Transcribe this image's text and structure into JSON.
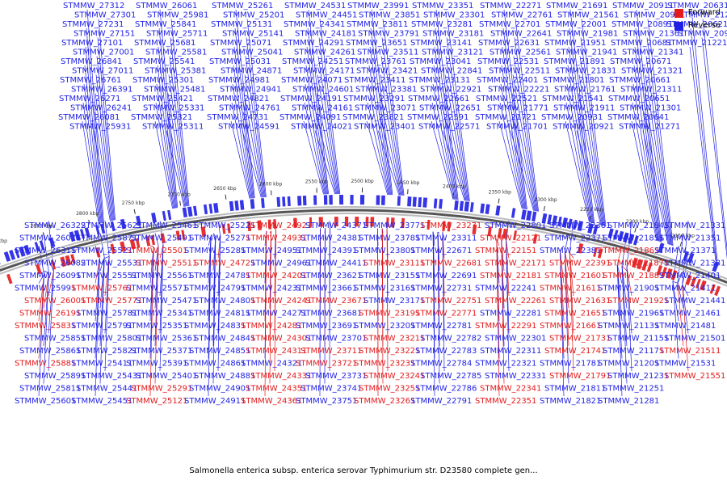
{
  "legend": {
    "forward_label": "Forward",
    "reverse_label": "Reverse",
    "forward_color": "#e31a1c",
    "reverse_color": "#1f1fe6"
  },
  "caption": "Salmonella enterica subsp. enterica serovar Typhimurium str. D23580 complete gen...",
  "scale_labels": [
    "2150 kbp",
    "2200 kbp",
    "2250 kbp",
    "2300 kbp",
    "2350 kbp",
    "2400 kbp",
    "2450 kbp",
    "2500 kbp",
    "2550 kbp",
    "2600 kbp",
    "2650 kbp",
    "2700 kbp",
    "2750 kbp",
    "2800 kbp",
    "2850 kbp",
    "2900 kbp"
  ],
  "reverse_genes_outer": [
    "STMMW_27312",
    "STMMW_27301",
    "STMMW_27231",
    "STMMW_27151",
    "STMMW_27101",
    "STMMW_27001",
    "STMMW_26841",
    "STMMW_27011",
    "STMMW_26761",
    "STMMW_26391",
    "STMMW_26271",
    "STMMW_26241",
    "STMMW_26081",
    "STMMW_25931",
    "STMMW_26061",
    "STMMW_25981",
    "STMMW_25841",
    "STMMW_25711",
    "STMMW_25681",
    "STMMW_25581",
    "STMMW_25541",
    "STMMW_25381",
    "STMMW_25301",
    "STMMW_25481",
    "STMMW_25421",
    "STMMW_25331",
    "STMMW_25321",
    "STMMW_25311",
    "STMMW_25261",
    "STMMW_25201",
    "STMMW_25131",
    "STMMW_25141",
    "STMMW_25071",
    "STMMW_25041",
    "STMMW_25031",
    "STMMW_24871",
    "STMMW_24981",
    "STMMW_24941",
    "STMMW_24821",
    "STMMW_24761",
    "STMMW_24731",
    "STMMW_24591",
    "STMMW_24531",
    "STMMW_24451",
    "STMMW_24341",
    "STMMW_24181",
    "STMMW_24291",
    "STMMW_24261",
    "STMMW_24251",
    "STMMW_24171",
    "STMMW_24071",
    "STMMW_24601",
    "STMMW_24191",
    "STMMW_24161",
    "STMMW_24091",
    "STMMW_24021",
    "STMMW_23991",
    "STMMW_23851",
    "STMMW_23811",
    "STMMW_23791",
    "STMMW_23651",
    "STMMW_23511",
    "STMMW_23761",
    "STMMW_23421",
    "STMMW_23411",
    "STMMW_23381",
    "STMMW_23291",
    "STMMW_23071",
    "STMMW_23821",
    "STMMW_23401",
    "STMMW_23351",
    "STMMW_23301",
    "STMMW_23281",
    "STMMW_23181",
    "STMMW_23141",
    "STMMW_23121",
    "STMMW_23041",
    "STMMW_22841",
    "STMMW_23131",
    "STMMW_22921",
    "STMMW_22661",
    "STMMW_22651",
    "STMMW_22591",
    "STMMW_22571",
    "STMMW_22271",
    "STMMW_22761",
    "STMMW_22701",
    "STMMW_22641",
    "STMMW_22631",
    "STMMW_22561",
    "STMMW_22531",
    "STMMW_22511",
    "STMMW_22401",
    "STMMW_22221",
    "STMMW_22521",
    "STMMW_21771",
    "STMMW_21721",
    "STMMW_21701",
    "STMMW_21691",
    "STMMW_21561",
    "STMMW_22001",
    "STMMW_21981",
    "STMMW_21951",
    "STMMW_21941",
    "STMMW_21891",
    "STMMW_21831",
    "STMMW_21801",
    "STMMW_21761",
    "STMMW_21541",
    "STMMW_21911",
    "STMMW_20931",
    "STMMW_20921",
    "STMMW_20911",
    "STMMW_20901",
    "STMMW_20891",
    "STMMW_21361",
    "STMMW_20681",
    "STMMW_21341",
    "STMMW_20671",
    "STMMW_21321",
    "STMMW_20661",
    "STMMW_21311",
    "STMMW_20651",
    "STMMW_21301",
    "STMMW_20641",
    "STMMW_21271",
    "STMMW_20631",
    "STMMW_21291",
    "STMMW_20621",
    "STMMW_20951",
    "STMMW_21221"
  ],
  "genes_inner": [
    {
      "label": "STMMW_26322",
      "strand": "reverse"
    },
    {
      "label": "STMMW_26071",
      "strand": "reverse"
    },
    {
      "label": "STMMW_26311",
      "strand": "reverse"
    },
    {
      "label": "STMMW_26082",
      "strand": "reverse"
    },
    {
      "label": "STMMW_26091",
      "strand": "reverse"
    },
    {
      "label": "STMMW_25991",
      "strand": "reverse"
    },
    {
      "label": "STMMW_26001",
      "strand": "forward"
    },
    {
      "label": "STMMW_26191",
      "strand": "forward"
    },
    {
      "label": "STMMW_25831",
      "strand": "forward"
    },
    {
      "label": "STMMW_25851",
      "strand": "reverse"
    },
    {
      "label": "STMMW_25861",
      "strand": "reverse"
    },
    {
      "label": "STMMW_25881",
      "strand": "forward"
    },
    {
      "label": "STMMW_25891",
      "strand": "reverse"
    },
    {
      "label": "STMMW_25811",
      "strand": "reverse"
    },
    {
      "label": "STMMW_25601",
      "strand": "reverse"
    },
    {
      "label": "STMMW_25621",
      "strand": "reverse"
    },
    {
      "label": "STMMW_25871",
      "strand": "reverse"
    },
    {
      "label": "STMMW_25521",
      "strand": "reverse"
    },
    {
      "label": "STMMW_25531",
      "strand": "reverse"
    },
    {
      "label": "STMMW_25551",
      "strand": "reverse"
    },
    {
      "label": "STMMW_25761",
      "strand": "forward"
    },
    {
      "label": "STMMW_25771",
      "strand": "forward"
    },
    {
      "label": "STMMW_25781",
      "strand": "reverse"
    },
    {
      "label": "STMMW_25791",
      "strand": "reverse"
    },
    {
      "label": "STMMW_25801",
      "strand": "reverse"
    },
    {
      "label": "STMMW_25821",
      "strand": "reverse"
    },
    {
      "label": "STMMW_25411",
      "strand": "reverse"
    },
    {
      "label": "STMMW_25431",
      "strand": "reverse"
    },
    {
      "label": "STMMW_25441",
      "strand": "reverse"
    },
    {
      "label": "STMMW_25451",
      "strand": "reverse"
    },
    {
      "label": "STMMW_25461",
      "strand": "reverse"
    },
    {
      "label": "STMMW_25491",
      "strand": "reverse"
    },
    {
      "label": "STMMW_25501",
      "strand": "forward"
    },
    {
      "label": "STMMW_25511",
      "strand": "forward"
    },
    {
      "label": "STMMW_25561",
      "strand": "reverse"
    },
    {
      "label": "STMMW_25571",
      "strand": "reverse"
    },
    {
      "label": "STMMW_25471",
      "strand": "reverse"
    },
    {
      "label": "STMMW_25341",
      "strand": "reverse"
    },
    {
      "label": "STMMW_25351",
      "strand": "reverse"
    },
    {
      "label": "STMMW_25361",
      "strand": "reverse"
    },
    {
      "label": "STMMW_25371",
      "strand": "reverse"
    },
    {
      "label": "STMMW_25391",
      "strand": "reverse"
    },
    {
      "label": "STMMW_25401",
      "strand": "reverse"
    },
    {
      "label": "STMMW_25291",
      "strand": "forward"
    },
    {
      "label": "STMMW_25121",
      "strand": "forward"
    },
    {
      "label": "STMMW_25221",
      "strand": "reverse"
    },
    {
      "label": "STMMW_25271",
      "strand": "reverse"
    },
    {
      "label": "STMMW_25281",
      "strand": "reverse"
    },
    {
      "label": "STMMW_24721",
      "strand": "forward"
    },
    {
      "label": "STMMW_24781",
      "strand": "reverse"
    },
    {
      "label": "STMMW_24791",
      "strand": "reverse"
    },
    {
      "label": "STMMW_24801",
      "strand": "reverse"
    },
    {
      "label": "STMMW_24811",
      "strand": "reverse"
    },
    {
      "label": "STMMW_24831",
      "strand": "reverse"
    },
    {
      "label": "STMMW_24841",
      "strand": "reverse"
    },
    {
      "label": "STMMW_24851",
      "strand": "reverse"
    },
    {
      "label": "STMMW_24861",
      "strand": "reverse"
    },
    {
      "label": "STMMW_24881",
      "strand": "reverse"
    },
    {
      "label": "STMMW_24901",
      "strand": "reverse"
    },
    {
      "label": "STMMW_24911",
      "strand": "reverse"
    },
    {
      "label": "STMMW_24921",
      "strand": "forward"
    },
    {
      "label": "STMMW_24931",
      "strand": "forward"
    },
    {
      "label": "STMMW_24951",
      "strand": "reverse"
    },
    {
      "label": "STMMW_24961",
      "strand": "reverse"
    },
    {
      "label": "STMMW_24201",
      "strand": "forward"
    },
    {
      "label": "STMMW_24231",
      "strand": "reverse"
    },
    {
      "label": "STMMW_24241",
      "strand": "forward"
    },
    {
      "label": "STMMW_24271",
      "strand": "reverse"
    },
    {
      "label": "STMMW_24281",
      "strand": "forward"
    },
    {
      "label": "STMMW_24301",
      "strand": "forward"
    },
    {
      "label": "STMMW_24311",
      "strand": "forward"
    },
    {
      "label": "STMMW_24321",
      "strand": "reverse"
    },
    {
      "label": "STMMW_24331",
      "strand": "forward"
    },
    {
      "label": "STMMW_24351",
      "strand": "forward"
    },
    {
      "label": "STMMW_24361",
      "strand": "forward"
    },
    {
      "label": "STMMW_24371",
      "strand": "reverse"
    },
    {
      "label": "STMMW_24381",
      "strand": "reverse"
    },
    {
      "label": "STMMW_24391",
      "strand": "reverse"
    },
    {
      "label": "STMMW_24411",
      "strand": "reverse"
    },
    {
      "label": "STMMW_23621",
      "strand": "reverse"
    },
    {
      "label": "STMMW_23661",
      "strand": "reverse"
    },
    {
      "label": "STMMW_23671",
      "strand": "forward"
    },
    {
      "label": "STMMW_23681",
      "strand": "reverse"
    },
    {
      "label": "STMMW_23691",
      "strand": "reverse"
    },
    {
      "label": "STMMW_23701",
      "strand": "reverse"
    },
    {
      "label": "STMMW_23711",
      "strand": "forward"
    },
    {
      "label": "STMMW_23721",
      "strand": "forward"
    },
    {
      "label": "STMMW_23731",
      "strand": "reverse"
    },
    {
      "label": "STMMW_23741",
      "strand": "reverse"
    },
    {
      "label": "STMMW_23751",
      "strand": "reverse"
    },
    {
      "label": "STMMW_23771",
      "strand": "reverse"
    },
    {
      "label": "STMMW_23781",
      "strand": "reverse"
    },
    {
      "label": "STMMW_23801",
      "strand": "reverse"
    },
    {
      "label": "STMMW_23111",
      "strand": "forward"
    },
    {
      "label": "STMMW_23151",
      "strand": "reverse"
    },
    {
      "label": "STMMW_23161",
      "strand": "reverse"
    },
    {
      "label": "STMMW_23171",
      "strand": "reverse"
    },
    {
      "label": "STMMW_23191",
      "strand": "forward"
    },
    {
      "label": "STMMW_23201",
      "strand": "reverse"
    },
    {
      "label": "STMMW_23211",
      "strand": "forward"
    },
    {
      "label": "STMMW_23221",
      "strand": "forward"
    },
    {
      "label": "STMMW_23231",
      "strand": "forward"
    },
    {
      "label": "STMMW_23241",
      "strand": "forward"
    },
    {
      "label": "STMMW_23251",
      "strand": "forward"
    },
    {
      "label": "STMMW_23261",
      "strand": "forward"
    },
    {
      "label": "STMMW_23271",
      "strand": "forward"
    },
    {
      "label": "STMMW_23311",
      "strand": "reverse"
    },
    {
      "label": "STMMW_22671",
      "strand": "reverse"
    },
    {
      "label": "STMMW_22681",
      "strand": "forward"
    },
    {
      "label": "STMMW_22691",
      "strand": "reverse"
    },
    {
      "label": "STMMW_22731",
      "strand": "reverse"
    },
    {
      "label": "STMMW_22751",
      "strand": "forward"
    },
    {
      "label": "STMMW_22771",
      "strand": "forward"
    },
    {
      "label": "STMMW_22781",
      "strand": "reverse"
    },
    {
      "label": "STMMW_22782",
      "strand": "reverse"
    },
    {
      "label": "STMMW_22783",
      "strand": "reverse"
    },
    {
      "label": "STMMW_22784",
      "strand": "reverse"
    },
    {
      "label": "STMMW_22785",
      "strand": "reverse"
    },
    {
      "label": "STMMW_22786",
      "strand": "reverse"
    },
    {
      "label": "STMMW_22791",
      "strand": "reverse"
    },
    {
      "label": "STMMW_22801",
      "strand": "reverse"
    },
    {
      "label": "STMMW_22121",
      "strand": "forward"
    },
    {
      "label": "STMMW_22151",
      "strand": "forward"
    },
    {
      "label": "STMMW_22171",
      "strand": "forward"
    },
    {
      "label": "STMMW_22181",
      "strand": "forward"
    },
    {
      "label": "STMMW_22241",
      "strand": "reverse"
    },
    {
      "label": "STMMW_22261",
      "strand": "forward"
    },
    {
      "label": "STMMW_22281",
      "strand": "reverse"
    },
    {
      "label": "STMMW_22291",
      "strand": "forward"
    },
    {
      "label": "STMMW_22301",
      "strand": "reverse"
    },
    {
      "label": "STMMW_22311",
      "strand": "reverse"
    },
    {
      "label": "STMMW_22321",
      "strand": "reverse"
    },
    {
      "label": "STMMW_22331",
      "strand": "reverse"
    },
    {
      "label": "STMMW_22341",
      "strand": "forward"
    },
    {
      "label": "STMMW_22351",
      "strand": "forward"
    },
    {
      "label": "STMMW_22361",
      "strand": "reverse"
    },
    {
      "label": "STMMW_22371",
      "strand": "reverse"
    },
    {
      "label": "STMMW_22381",
      "strand": "reverse"
    },
    {
      "label": "STMMW_22391",
      "strand": "forward"
    },
    {
      "label": "STMMW_21601",
      "strand": "forward"
    },
    {
      "label": "STMMW_21611",
      "strand": "forward"
    },
    {
      "label": "STMMW_21631",
      "strand": "forward"
    },
    {
      "label": "STMMW_21651",
      "strand": "forward"
    },
    {
      "label": "STMMW_21661",
      "strand": "forward"
    },
    {
      "label": "STMMW_21731",
      "strand": "forward"
    },
    {
      "label": "STMMW_21741",
      "strand": "forward"
    },
    {
      "label": "STMMW_21781",
      "strand": "reverse"
    },
    {
      "label": "STMMW_21791",
      "strand": "forward"
    },
    {
      "label": "STMMW_21811",
      "strand": "reverse"
    },
    {
      "label": "STMMW_21821",
      "strand": "reverse"
    },
    {
      "label": "STMMW_21841",
      "strand": "reverse"
    },
    {
      "label": "STMMW_21851",
      "strand": "reverse"
    },
    {
      "label": "STMMW_21861",
      "strand": "forward"
    },
    {
      "label": "STMMW_21871",
      "strand": "forward"
    },
    {
      "label": "STMMW_21881",
      "strand": "forward"
    },
    {
      "label": "STMMW_21901",
      "strand": "reverse"
    },
    {
      "label": "STMMW_21921",
      "strand": "forward"
    },
    {
      "label": "STMMW_21961",
      "strand": "reverse"
    },
    {
      "label": "STMMW_21131",
      "strand": "reverse"
    },
    {
      "label": "STMMW_21151",
      "strand": "reverse"
    },
    {
      "label": "STMMW_21171",
      "strand": "reverse"
    },
    {
      "label": "STMMW_21201",
      "strand": "reverse"
    },
    {
      "label": "STMMW_21231",
      "strand": "reverse"
    },
    {
      "label": "STMMW_21251",
      "strand": "reverse"
    },
    {
      "label": "STMMW_21281",
      "strand": "reverse"
    },
    {
      "label": "STMMW_21331",
      "strand": "reverse"
    },
    {
      "label": "STMMW_21351",
      "strand": "reverse"
    },
    {
      "label": "STMMW_21371",
      "strand": "reverse"
    },
    {
      "label": "STMMW_21381",
      "strand": "reverse"
    },
    {
      "label": "STMMW_21401",
      "strand": "reverse"
    },
    {
      "label": "STMMW_21411",
      "strand": "reverse"
    },
    {
      "label": "STMMW_21441",
      "strand": "reverse"
    },
    {
      "label": "STMMW_21461",
      "strand": "reverse"
    },
    {
      "label": "STMMW_21481",
      "strand": "reverse"
    },
    {
      "label": "STMMW_21501",
      "strand": "reverse"
    },
    {
      "label": "STMMW_21511",
      "strand": "forward"
    },
    {
      "label": "STMMW_21531",
      "strand": "reverse"
    },
    {
      "label": "STMMW_21551",
      "strand": "forward"
    }
  ]
}
